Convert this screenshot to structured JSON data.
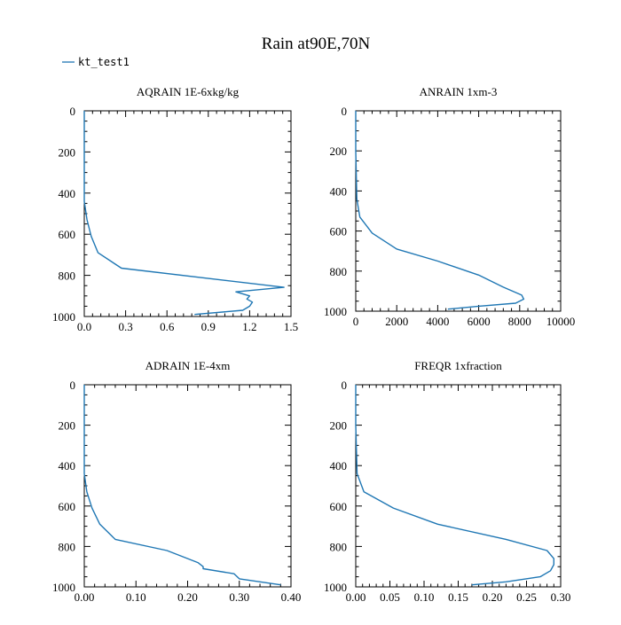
{
  "figure": {
    "title": "Rain at90E,70N",
    "legend": {
      "label": "kt_test1",
      "color": "#1f77b4",
      "position": "top-left"
    }
  },
  "chart_data": [
    {
      "type": "line",
      "title": "AQRAIN  1E-6xkg/kg",
      "xlim": [
        0,
        1.5
      ],
      "ylim": [
        1000,
        0
      ],
      "xticks": [
        "0.0",
        "0.3",
        "0.6",
        "0.9",
        "1.2",
        "1.5"
      ],
      "yticks": [
        "0",
        "200",
        "400",
        "600",
        "800",
        "1000"
      ],
      "series": [
        {
          "x": [
            0.0,
            0.0,
            0.0,
            0.02,
            0.05,
            0.1,
            0.27,
            1.45,
            1.1,
            1.2,
            1.18,
            1.22,
            1.2,
            1.15,
            0.8
          ],
          "y": [
            0,
            200,
            440,
            530,
            610,
            690,
            765,
            858,
            880,
            900,
            915,
            930,
            950,
            970,
            990
          ]
        }
      ]
    },
    {
      "type": "line",
      "title": "ANRAIN  1xm-3",
      "xlim": [
        0,
        10000
      ],
      "ylim": [
        1000,
        0
      ],
      "xticks": [
        "0",
        "2000",
        "4000",
        "6000",
        "8000",
        "10000"
      ],
      "yticks": [
        "0",
        "200",
        "400",
        "600",
        "800",
        "1000"
      ],
      "series": [
        {
          "x": [
            0,
            0,
            50,
            200,
            800,
            2000,
            4000,
            6000,
            7200,
            8100,
            8200,
            7800,
            6000,
            4500
          ],
          "y": [
            0,
            200,
            440,
            530,
            610,
            690,
            750,
            820,
            880,
            920,
            940,
            960,
            975,
            990
          ]
        }
      ]
    },
    {
      "type": "line",
      "title": "ADRAIN  1E-4xm",
      "xlim": [
        0,
        0.4
      ],
      "ylim": [
        1000,
        0
      ],
      "xticks": [
        "0.00",
        "0.10",
        "0.20",
        "0.30",
        "0.40"
      ],
      "yticks": [
        "0",
        "200",
        "400",
        "600",
        "800",
        "1000"
      ],
      "series": [
        {
          "x": [
            0.0,
            0.0,
            0.0,
            0.005,
            0.015,
            0.03,
            0.06,
            0.16,
            0.22,
            0.23,
            0.23,
            0.29,
            0.3,
            0.38
          ],
          "y": [
            0,
            200,
            440,
            530,
            610,
            690,
            765,
            820,
            880,
            900,
            910,
            935,
            960,
            990
          ]
        }
      ]
    },
    {
      "type": "line",
      "title": "FREQR  1xfraction",
      "xlim": [
        0,
        0.3
      ],
      "ylim": [
        1000,
        0
      ],
      "xticks": [
        "0.00",
        "0.05",
        "0.10",
        "0.15",
        "0.20",
        "0.25",
        "0.30"
      ],
      "yticks": [
        "0",
        "200",
        "400",
        "600",
        "800",
        "1000"
      ],
      "series": [
        {
          "x": [
            0.0,
            0.0,
            0.002,
            0.012,
            0.055,
            0.12,
            0.22,
            0.28,
            0.29,
            0.29,
            0.285,
            0.27,
            0.22,
            0.17
          ],
          "y": [
            0,
            200,
            440,
            530,
            610,
            690,
            765,
            820,
            860,
            890,
            920,
            950,
            975,
            990
          ]
        }
      ]
    }
  ]
}
